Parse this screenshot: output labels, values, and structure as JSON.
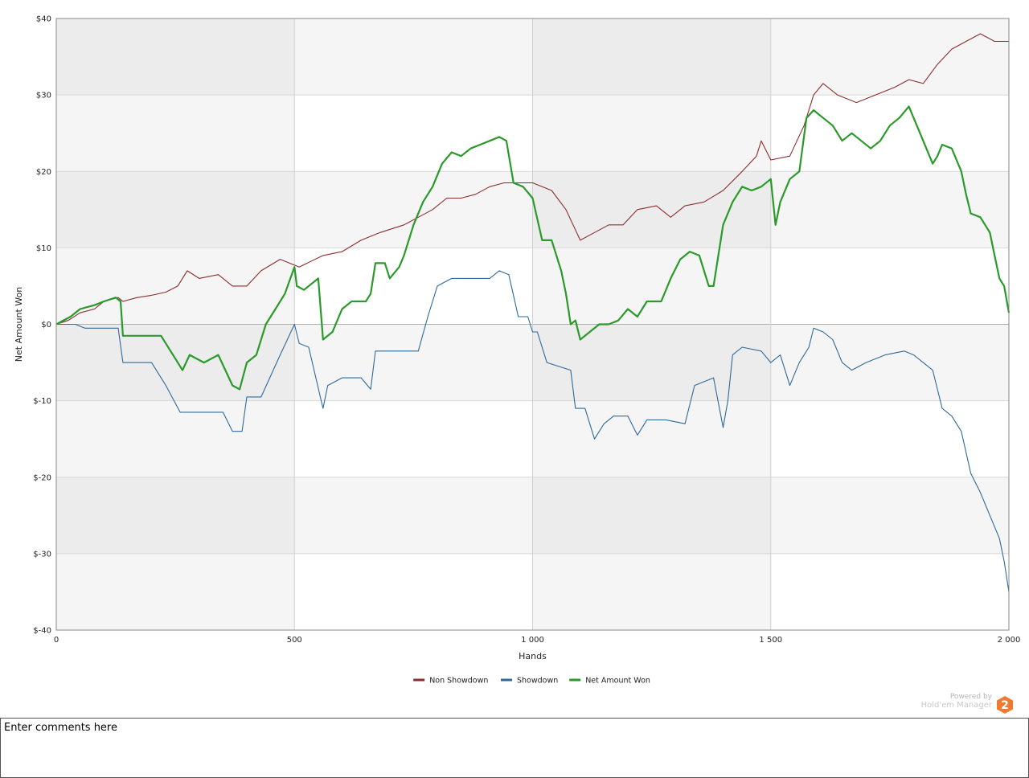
{
  "chart_data": {
    "type": "line",
    "title": "",
    "xlabel": "Hands",
    "ylabel": "Net Amount Won",
    "xlim": [
      0,
      2000
    ],
    "ylim": [
      -40,
      40
    ],
    "x_ticks": [
      0,
      500,
      1000,
      1500,
      2000
    ],
    "x_tick_labels": [
      "0",
      "500",
      "1 000",
      "1 500",
      "2 000"
    ],
    "y_ticks": [
      40,
      30,
      20,
      10,
      0,
      -10,
      -20,
      -30,
      -40
    ],
    "y_tick_labels": [
      "$40",
      "$30",
      "$20",
      "$10",
      "$0",
      "$-10",
      "$-20",
      "$-30",
      "$-40"
    ],
    "grid": true,
    "legend_position": "bottom-center",
    "series": [
      {
        "name": "Non Showdown",
        "color": "#8b2e2e",
        "points": [
          [
            0,
            0
          ],
          [
            25,
            0.5
          ],
          [
            50,
            1.5
          ],
          [
            80,
            2
          ],
          [
            100,
            3
          ],
          [
            130,
            3.5
          ],
          [
            140,
            3
          ],
          [
            170,
            3.5
          ],
          [
            200,
            3.8
          ],
          [
            230,
            4.2
          ],
          [
            255,
            5
          ],
          [
            275,
            7
          ],
          [
            300,
            6
          ],
          [
            340,
            6.5
          ],
          [
            370,
            5
          ],
          [
            400,
            5
          ],
          [
            430,
            7
          ],
          [
            470,
            8.5
          ],
          [
            510,
            7.5
          ],
          [
            560,
            9
          ],
          [
            600,
            9.5
          ],
          [
            640,
            11
          ],
          [
            680,
            12
          ],
          [
            730,
            13
          ],
          [
            760,
            14
          ],
          [
            790,
            15
          ],
          [
            820,
            16.5
          ],
          [
            850,
            16.5
          ],
          [
            880,
            17
          ],
          [
            910,
            18
          ],
          [
            940,
            18.5
          ],
          [
            970,
            18.5
          ],
          [
            1000,
            18.5
          ],
          [
            1040,
            17.5
          ],
          [
            1070,
            15
          ],
          [
            1100,
            11
          ],
          [
            1130,
            12
          ],
          [
            1160,
            13
          ],
          [
            1190,
            13
          ],
          [
            1220,
            15
          ],
          [
            1260,
            15.5
          ],
          [
            1290,
            14
          ],
          [
            1320,
            15.5
          ],
          [
            1360,
            16
          ],
          [
            1400,
            17.5
          ],
          [
            1440,
            20
          ],
          [
            1470,
            22
          ],
          [
            1480,
            24
          ],
          [
            1500,
            21.5
          ],
          [
            1540,
            22
          ],
          [
            1570,
            26
          ],
          [
            1590,
            30
          ],
          [
            1610,
            31.5
          ],
          [
            1640,
            30
          ],
          [
            1680,
            29
          ],
          [
            1720,
            30
          ],
          [
            1760,
            31
          ],
          [
            1790,
            32
          ],
          [
            1820,
            31.5
          ],
          [
            1850,
            34
          ],
          [
            1880,
            36
          ],
          [
            1910,
            37
          ],
          [
            1940,
            38
          ],
          [
            1970,
            37
          ],
          [
            2000,
            37
          ]
        ]
      },
      {
        "name": "Showdown",
        "color": "#2f6a9a",
        "points": [
          [
            0,
            0
          ],
          [
            40,
            0
          ],
          [
            60,
            -0.5
          ],
          [
            100,
            -0.5
          ],
          [
            130,
            -0.5
          ],
          [
            140,
            -5
          ],
          [
            200,
            -5
          ],
          [
            230,
            -8
          ],
          [
            260,
            -11.5
          ],
          [
            300,
            -11.5
          ],
          [
            350,
            -11.5
          ],
          [
            370,
            -14
          ],
          [
            390,
            -14
          ],
          [
            400,
            -9.5
          ],
          [
            430,
            -9.5
          ],
          [
            470,
            -4
          ],
          [
            500,
            0
          ],
          [
            510,
            -2.5
          ],
          [
            530,
            -3
          ],
          [
            560,
            -11
          ],
          [
            570,
            -8
          ],
          [
            600,
            -7
          ],
          [
            640,
            -7
          ],
          [
            660,
            -8.5
          ],
          [
            670,
            -3.5
          ],
          [
            720,
            -3.5
          ],
          [
            760,
            -3.5
          ],
          [
            780,
            1
          ],
          [
            800,
            5
          ],
          [
            830,
            6
          ],
          [
            870,
            6
          ],
          [
            910,
            6
          ],
          [
            930,
            7
          ],
          [
            950,
            6.5
          ],
          [
            970,
            1
          ],
          [
            990,
            1
          ],
          [
            1000,
            -1
          ],
          [
            1010,
            -1
          ],
          [
            1030,
            -5
          ],
          [
            1080,
            -6
          ],
          [
            1090,
            -11
          ],
          [
            1110,
            -11
          ],
          [
            1130,
            -15
          ],
          [
            1150,
            -13
          ],
          [
            1170,
            -12
          ],
          [
            1200,
            -12
          ],
          [
            1220,
            -14.5
          ],
          [
            1240,
            -12.5
          ],
          [
            1280,
            -12.5
          ],
          [
            1320,
            -13
          ],
          [
            1340,
            -8
          ],
          [
            1380,
            -7
          ],
          [
            1400,
            -13.5
          ],
          [
            1410,
            -10
          ],
          [
            1420,
            -4
          ],
          [
            1440,
            -3
          ],
          [
            1480,
            -3.5
          ],
          [
            1500,
            -5
          ],
          [
            1520,
            -4
          ],
          [
            1540,
            -8
          ],
          [
            1560,
            -5
          ],
          [
            1580,
            -3
          ],
          [
            1590,
            -0.5
          ],
          [
            1610,
            -1
          ],
          [
            1630,
            -2
          ],
          [
            1650,
            -5
          ],
          [
            1670,
            -6
          ],
          [
            1700,
            -5
          ],
          [
            1740,
            -4
          ],
          [
            1780,
            -3.5
          ],
          [
            1800,
            -4
          ],
          [
            1820,
            -5
          ],
          [
            1840,
            -6
          ],
          [
            1860,
            -11
          ],
          [
            1880,
            -12
          ],
          [
            1900,
            -14
          ],
          [
            1920,
            -19.5
          ],
          [
            1940,
            -22
          ],
          [
            1960,
            -25
          ],
          [
            1980,
            -28
          ],
          [
            1990,
            -31
          ],
          [
            2000,
            -35
          ]
        ]
      },
      {
        "name": "Net Amount Won",
        "color": "#2a9a2a",
        "points": [
          [
            0,
            0
          ],
          [
            30,
            1
          ],
          [
            50,
            2
          ],
          [
            80,
            2.5
          ],
          [
            100,
            3
          ],
          [
            125,
            3.5
          ],
          [
            135,
            3
          ],
          [
            140,
            -1.5
          ],
          [
            180,
            -1.5
          ],
          [
            220,
            -1.5
          ],
          [
            245,
            -4
          ],
          [
            265,
            -6
          ],
          [
            280,
            -4
          ],
          [
            310,
            -5
          ],
          [
            340,
            -4
          ],
          [
            370,
            -8
          ],
          [
            385,
            -8.5
          ],
          [
            400,
            -5
          ],
          [
            420,
            -4
          ],
          [
            440,
            0
          ],
          [
            460,
            2
          ],
          [
            480,
            4
          ],
          [
            500,
            7.5
          ],
          [
            505,
            5
          ],
          [
            520,
            4.5
          ],
          [
            550,
            6
          ],
          [
            560,
            -2
          ],
          [
            580,
            -1
          ],
          [
            600,
            2
          ],
          [
            620,
            3
          ],
          [
            650,
            3
          ],
          [
            660,
            4
          ],
          [
            670,
            8
          ],
          [
            690,
            8
          ],
          [
            700,
            6
          ],
          [
            720,
            7.5
          ],
          [
            730,
            9
          ],
          [
            750,
            13
          ],
          [
            770,
            16
          ],
          [
            790,
            18
          ],
          [
            810,
            21
          ],
          [
            830,
            22.5
          ],
          [
            850,
            22
          ],
          [
            870,
            23
          ],
          [
            890,
            23.5
          ],
          [
            910,
            24
          ],
          [
            930,
            24.5
          ],
          [
            945,
            24
          ],
          [
            960,
            18.5
          ],
          [
            980,
            18
          ],
          [
            1000,
            16.5
          ],
          [
            1020,
            11
          ],
          [
            1040,
            11
          ],
          [
            1060,
            7
          ],
          [
            1070,
            4
          ],
          [
            1080,
            0
          ],
          [
            1090,
            0.5
          ],
          [
            1100,
            -2
          ],
          [
            1120,
            -1
          ],
          [
            1140,
            0
          ],
          [
            1160,
            0
          ],
          [
            1180,
            0.5
          ],
          [
            1200,
            2
          ],
          [
            1220,
            1
          ],
          [
            1240,
            3
          ],
          [
            1270,
            3
          ],
          [
            1290,
            6
          ],
          [
            1310,
            8.5
          ],
          [
            1330,
            9.5
          ],
          [
            1350,
            9
          ],
          [
            1370,
            5
          ],
          [
            1380,
            5
          ],
          [
            1400,
            13
          ],
          [
            1420,
            16
          ],
          [
            1440,
            18
          ],
          [
            1460,
            17.5
          ],
          [
            1480,
            18
          ],
          [
            1500,
            19
          ],
          [
            1510,
            13
          ],
          [
            1520,
            16
          ],
          [
            1540,
            19
          ],
          [
            1560,
            20
          ],
          [
            1575,
            27
          ],
          [
            1590,
            28
          ],
          [
            1610,
            27
          ],
          [
            1630,
            26
          ],
          [
            1650,
            24
          ],
          [
            1670,
            25
          ],
          [
            1690,
            24
          ],
          [
            1710,
            23
          ],
          [
            1730,
            24
          ],
          [
            1750,
            26
          ],
          [
            1770,
            27
          ],
          [
            1790,
            28.5
          ],
          [
            1800,
            27
          ],
          [
            1820,
            24
          ],
          [
            1840,
            21
          ],
          [
            1850,
            22
          ],
          [
            1860,
            23.5
          ],
          [
            1880,
            23
          ],
          [
            1900,
            20
          ],
          [
            1910,
            17
          ],
          [
            1920,
            14.5
          ],
          [
            1940,
            14
          ],
          [
            1960,
            12
          ],
          [
            1970,
            9
          ],
          [
            1980,
            6
          ],
          [
            1990,
            5
          ],
          [
            2000,
            1.5
          ]
        ]
      }
    ]
  },
  "legend": {
    "items": [
      {
        "label": "Non Showdown",
        "color": "#8b2e2e"
      },
      {
        "label": "Showdown",
        "color": "#2f6a9a"
      },
      {
        "label": "Net Amount Won",
        "color": "#2a9a2a"
      }
    ]
  },
  "branding": {
    "powered_by": "Powered by",
    "product": "Hold'em Manager",
    "logo_digit": "2",
    "logo_color": "#f07a30"
  },
  "comments": {
    "placeholder": "Enter comments here"
  }
}
